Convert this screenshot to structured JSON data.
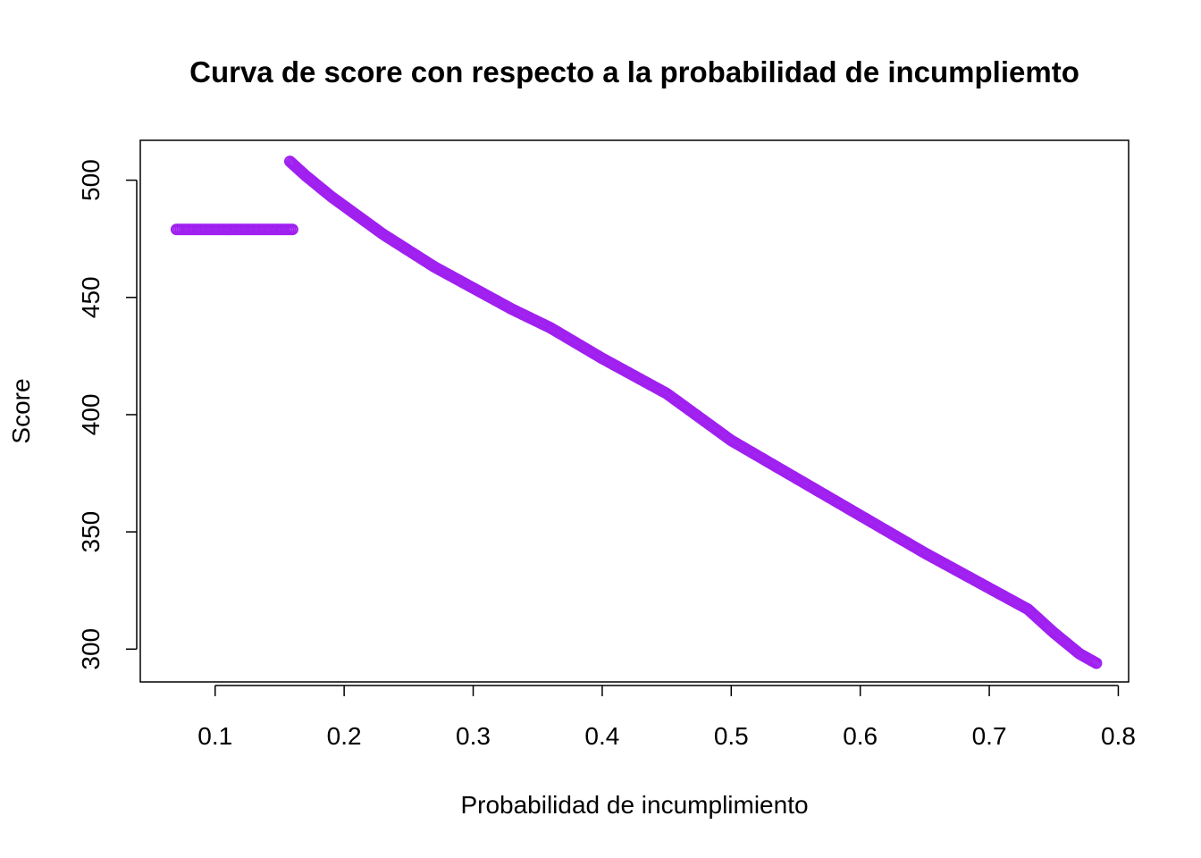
{
  "chart_data": {
    "type": "scatter",
    "title": "Curva de score con respecto a la probabilidad de incumpliemto",
    "xlabel": "Probabilidad de incumplimiento",
    "ylabel": "Score",
    "xlim": [
      0.042,
      0.808
    ],
    "ylim": [
      286,
      517
    ],
    "x_ticks": [
      0.1,
      0.2,
      0.3,
      0.4,
      0.5,
      0.6,
      0.7,
      0.8
    ],
    "x_tick_labels": [
      "0.1",
      "0.2",
      "0.3",
      "0.4",
      "0.5",
      "0.6",
      "0.7",
      "0.8"
    ],
    "y_ticks": [
      300,
      350,
      400,
      450,
      500
    ],
    "y_tick_labels": [
      "300",
      "350",
      "400",
      "450",
      "500"
    ],
    "grid": false,
    "legend": "none",
    "marker": "open-circle",
    "color": "#a020f0",
    "series": [
      {
        "segments": [
          {
            "kind": "flat",
            "points": [
              [
                0.07,
                479
              ],
              [
                0.16,
                479
              ]
            ]
          },
          {
            "kind": "curve",
            "points": [
              [
                0.158,
                508
              ],
              [
                0.17,
                502
              ],
              [
                0.19,
                493
              ],
              [
                0.21,
                485
              ],
              [
                0.23,
                477
              ],
              [
                0.25,
                470
              ],
              [
                0.27,
                463
              ],
              [
                0.3,
                454
              ],
              [
                0.33,
                445
              ],
              [
                0.36,
                437
              ],
              [
                0.4,
                424
              ],
              [
                0.45,
                409
              ],
              [
                0.5,
                389
              ],
              [
                0.55,
                373
              ],
              [
                0.6,
                357
              ],
              [
                0.65,
                341
              ],
              [
                0.7,
                326
              ],
              [
                0.73,
                317
              ],
              [
                0.75,
                307
              ],
              [
                0.77,
                298
              ],
              [
                0.783,
                294
              ]
            ]
          }
        ]
      }
    ]
  }
}
